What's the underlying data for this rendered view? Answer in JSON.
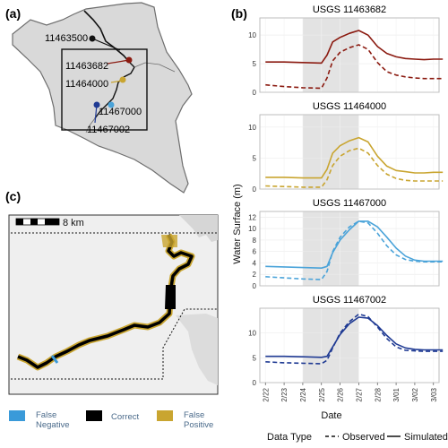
{
  "panels": {
    "a": "(a)",
    "b": "(b)",
    "c": "(c)"
  },
  "map_a": {
    "gauges": [
      {
        "id": "11463500",
        "color": "#111111"
      },
      {
        "id": "11463682",
        "color": "#8b1a10"
      },
      {
        "id": "11464000",
        "color": "#c9a530"
      },
      {
        "id": "11467000",
        "color": "#4aa3d9"
      },
      {
        "id": "11467002",
        "color": "#1f3a93"
      }
    ]
  },
  "map_c": {
    "scale_label": "8 km",
    "legend": [
      {
        "label": "False\nNegative",
        "line1": "False",
        "line2": "Negative",
        "color": "#3a9ad9"
      },
      {
        "label": "Correct",
        "line1": "Correct",
        "line2": "",
        "color": "#000000"
      },
      {
        "label": "False\nPositive",
        "line1": "False",
        "line2": "Positive",
        "color": "#c9a530"
      }
    ]
  },
  "chart_data": {
    "type": "line",
    "ylabel": "Water Surface (m)",
    "xlabel": "Date",
    "categories": [
      "2/22",
      "2/23",
      "2/24",
      "2/25",
      "2/26",
      "2/27",
      "2/28",
      "3/01",
      "3/02",
      "3/03"
    ],
    "shaded_range": [
      "2/24",
      "2/27"
    ],
    "legend": {
      "title": "Data Type",
      "entries": [
        {
          "label": "Observed",
          "style": "dashed"
        },
        {
          "label": "Simulated",
          "style": "solid"
        }
      ]
    },
    "subplots": [
      {
        "title": "USGS 11463682",
        "color": "#8b1a10",
        "yticks": [
          0,
          5,
          10
        ],
        "ylim": [
          0,
          13
        ],
        "series": [
          {
            "name": "Observed",
            "x": [
              0,
              1,
              2,
              3,
              3.3,
              3.6,
              4,
              4.5,
              5,
              5.5,
              6,
              6.5,
              7,
              7.5,
              8,
              8.5,
              9,
              9.5
            ],
            "y": [
              1.3,
              1.0,
              0.8,
              0.7,
              2.5,
              5.5,
              7.0,
              7.8,
              8.3,
              7.5,
              5.2,
              3.6,
              3.0,
              2.7,
              2.5,
              2.4,
              2.4,
              2.4
            ]
          },
          {
            "name": "Simulated",
            "x": [
              0,
              1,
              2,
              3,
              3.3,
              3.6,
              4,
              4.5,
              5,
              5.5,
              6,
              6.5,
              7,
              7.5,
              8,
              8.5,
              9,
              9.5
            ],
            "y": [
              5.3,
              5.3,
              5.2,
              5.1,
              6.5,
              8.8,
              9.6,
              10.3,
              10.8,
              10.0,
              8.0,
              6.8,
              6.2,
              5.9,
              5.8,
              5.7,
              5.8,
              5.8
            ]
          }
        ]
      },
      {
        "title": "USGS 11464000",
        "color": "#c9a530",
        "yticks": [
          0,
          5,
          10
        ],
        "ylim": [
          0,
          12
        ],
        "series": [
          {
            "name": "Observed",
            "x": [
              0,
              1,
              2,
              3,
              3.3,
              3.6,
              4,
              4.5,
              5,
              5.5,
              6,
              6.5,
              7,
              7.5,
              8,
              8.5,
              9,
              9.5
            ],
            "y": [
              0.5,
              0.4,
              0.3,
              0.3,
              1.5,
              3.8,
              5.3,
              6.2,
              6.6,
              5.8,
              3.8,
              2.4,
              1.7,
              1.4,
              1.3,
              1.3,
              1.3,
              1.3
            ]
          },
          {
            "name": "Simulated",
            "x": [
              0,
              1,
              2,
              3,
              3.3,
              3.6,
              4,
              4.5,
              5,
              5.5,
              6,
              6.5,
              7,
              7.5,
              8,
              8.5,
              9,
              9.5
            ],
            "y": [
              1.9,
              1.9,
              1.8,
              1.8,
              3.2,
              5.8,
              7.0,
              7.8,
              8.3,
              7.6,
              5.3,
              3.7,
              3.0,
              2.8,
              2.6,
              2.6,
              2.7,
              2.7
            ]
          }
        ]
      },
      {
        "title": "USGS 11467000",
        "color": "#4aa3d9",
        "yticks": [
          0,
          2,
          4,
          6,
          8,
          10,
          12
        ],
        "ylim": [
          0,
          13
        ],
        "series": [
          {
            "name": "Observed",
            "x": [
              0,
              1,
              2,
              3,
              3.3,
              3.6,
              4,
              4.5,
              5,
              5.5,
              6,
              6.5,
              7,
              7.5,
              8,
              8.5,
              9,
              9.5
            ],
            "y": [
              1.6,
              1.4,
              1.2,
              1.1,
              2.5,
              6.0,
              8.5,
              10.3,
              11.3,
              11.0,
              9.2,
              7.0,
              5.4,
              4.6,
              4.3,
              4.2,
              4.2,
              4.2
            ]
          },
          {
            "name": "Simulated",
            "x": [
              0,
              1,
              2,
              3,
              3.3,
              3.6,
              4,
              4.5,
              5,
              5.5,
              6,
              6.5,
              7,
              7.5,
              8,
              8.5,
              9,
              9.5
            ],
            "y": [
              3.4,
              3.3,
              3.2,
              3.1,
              3.4,
              5.8,
              8.0,
              9.8,
              11.3,
              11.3,
              10.3,
              8.5,
              6.6,
              5.2,
              4.5,
              4.3,
              4.3,
              4.3
            ]
          }
        ]
      },
      {
        "title": "USGS 11467002",
        "color": "#1f3a93",
        "yticks": [
          0,
          5,
          10
        ],
        "ylim": [
          0,
          15
        ],
        "series": [
          {
            "name": "Observed",
            "x": [
              0,
              1,
              2,
              3,
              3.3,
              3.6,
              4,
              4.5,
              5,
              5.5,
              6,
              6.5,
              7,
              7.5,
              8,
              8.5,
              9,
              9.5
            ],
            "y": [
              4.2,
              4.0,
              3.9,
              3.8,
              4.5,
              7.0,
              10.0,
              12.3,
              13.8,
              13.3,
              11.2,
              8.9,
              7.2,
              6.5,
              6.4,
              6.3,
              6.3,
              6.3
            ]
          },
          {
            "name": "Simulated",
            "x": [
              0,
              1,
              2,
              3,
              3.3,
              3.6,
              4,
              4.5,
              5,
              5.5,
              6,
              6.5,
              7,
              7.5,
              8,
              8.5,
              9,
              9.5
            ],
            "y": [
              5.3,
              5.3,
              5.2,
              5.1,
              5.3,
              7.2,
              9.7,
              11.9,
              13.2,
              13.0,
              11.5,
              9.5,
              7.8,
              7.0,
              6.7,
              6.6,
              6.6,
              6.6
            ]
          }
        ]
      }
    ]
  }
}
